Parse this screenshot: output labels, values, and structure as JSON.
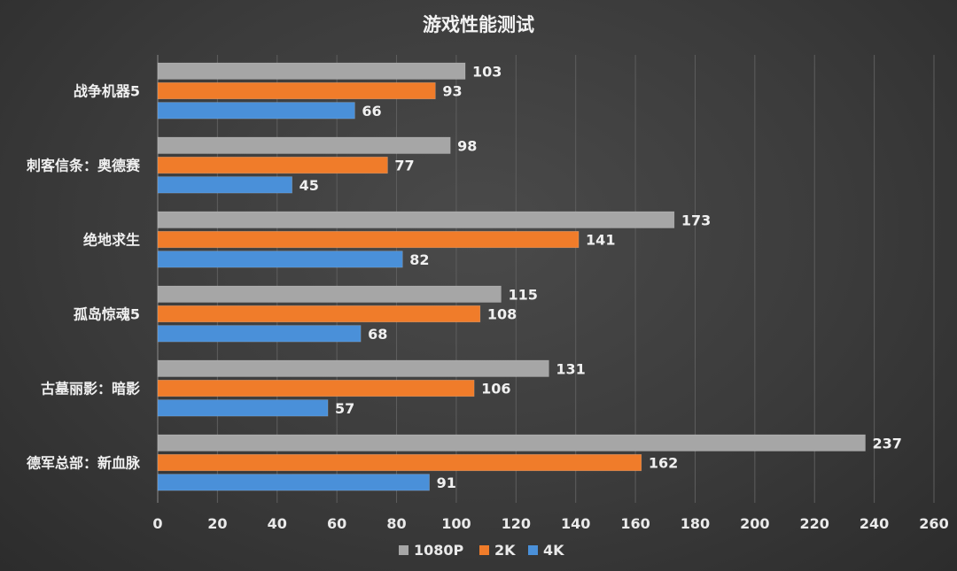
{
  "chart_data": {
    "type": "bar",
    "orientation": "horizontal",
    "title": "游戏性能测试",
    "categories": [
      "战争机器5",
      "刺客信条：奥德赛",
      "绝地求生",
      "孤岛惊魂5",
      "古墓丽影：暗影",
      "德军总部：新血脉"
    ],
    "series": [
      {
        "name": "1080P",
        "color": "#a6a6a6",
        "values": [
          103,
          98,
          173,
          115,
          131,
          237
        ]
      },
      {
        "name": "2K",
        "color": "#f07c2a",
        "values": [
          93,
          77,
          141,
          108,
          106,
          162
        ]
      },
      {
        "name": "4K",
        "color": "#4a90d9",
        "values": [
          66,
          45,
          82,
          68,
          57,
          91
        ]
      }
    ],
    "xlim": [
      0,
      260
    ],
    "xticks": [
      0,
      20,
      40,
      60,
      80,
      100,
      120,
      140,
      160,
      180,
      200,
      220,
      240,
      260
    ],
    "xlabel": "",
    "ylabel": "",
    "grid": true,
    "legend_position": "bottom",
    "data_labels": true
  }
}
